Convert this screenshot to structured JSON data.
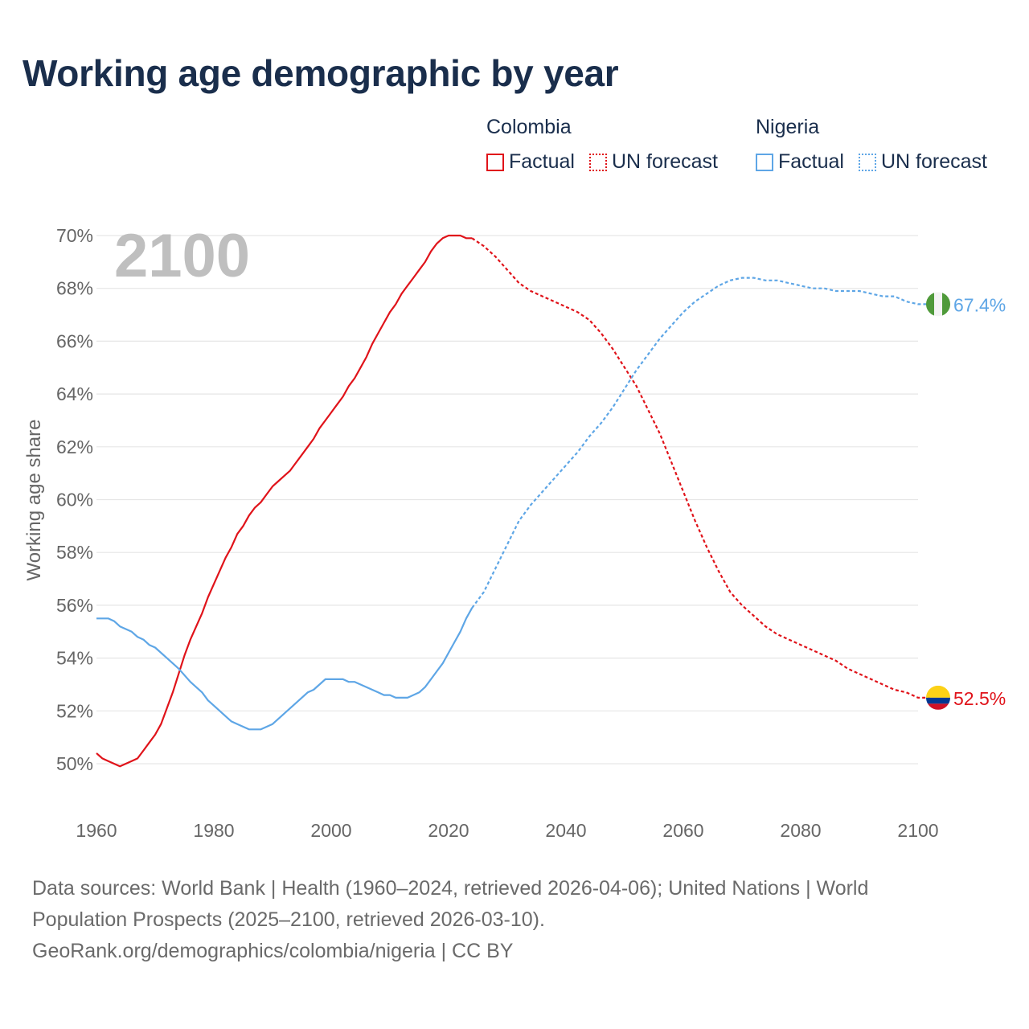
{
  "title": "Working age demographic by year",
  "legend": {
    "groups": [
      {
        "name": "Colombia",
        "factual": "Factual",
        "forecast": "UN forecast"
      },
      {
        "name": "Nigeria",
        "factual": "Factual",
        "forecast": "UN forecast"
      }
    ]
  },
  "sources": {
    "line1": "Data sources: World Bank | Health (1960–2024, retrieved 2026-04-06); United Nations | World",
    "line2": "Population Prospects (2025–2100, retrieved 2026-03-10).",
    "line3": "GeoRank.org/demographics/colombia/nigeria | CC BY"
  },
  "colors": {
    "colombia": "#e0131a",
    "nigeria": "#5ea6e6",
    "grid": "#e6e6e6",
    "tick": "#666666",
    "year_watermark": "#bfbfbf"
  },
  "chart_data": {
    "type": "line",
    "title": "Working age demographic by year",
    "year_watermark": "2100",
    "xlabel": "",
    "ylabel": "Working age share",
    "xlim": [
      1960,
      2100
    ],
    "ylim": [
      49,
      71
    ],
    "x_ticks": [
      "1960",
      "1980",
      "2000",
      "2020",
      "2040",
      "2060",
      "2080",
      "2100"
    ],
    "x_tick_values": [
      1960,
      1980,
      2000,
      2020,
      2040,
      2060,
      2080,
      2100
    ],
    "y_ticks": [
      "50%",
      "52%",
      "54%",
      "56%",
      "58%",
      "60%",
      "62%",
      "64%",
      "66%",
      "68%",
      "70%"
    ],
    "y_tick_values": [
      50,
      52,
      54,
      56,
      58,
      60,
      62,
      64,
      66,
      68,
      70
    ],
    "factual_end_year": 2024,
    "series": [
      {
        "name": "Colombia",
        "color": "#e0131a",
        "end_label": "52.5%",
        "flag": "colombia",
        "points": [
          [
            1960,
            50.4
          ],
          [
            1961,
            50.2
          ],
          [
            1962,
            50.1
          ],
          [
            1963,
            50.0
          ],
          [
            1964,
            49.9
          ],
          [
            1965,
            50.0
          ],
          [
            1966,
            50.1
          ],
          [
            1967,
            50.2
          ],
          [
            1968,
            50.5
          ],
          [
            1969,
            50.8
          ],
          [
            1970,
            51.1
          ],
          [
            1971,
            51.5
          ],
          [
            1972,
            52.1
          ],
          [
            1973,
            52.7
          ],
          [
            1974,
            53.4
          ],
          [
            1975,
            54.1
          ],
          [
            1976,
            54.7
          ],
          [
            1977,
            55.2
          ],
          [
            1978,
            55.7
          ],
          [
            1979,
            56.3
          ],
          [
            1980,
            56.8
          ],
          [
            1981,
            57.3
          ],
          [
            1982,
            57.8
          ],
          [
            1983,
            58.2
          ],
          [
            1984,
            58.7
          ],
          [
            1985,
            59.0
          ],
          [
            1986,
            59.4
          ],
          [
            1987,
            59.7
          ],
          [
            1988,
            59.9
          ],
          [
            1989,
            60.2
          ],
          [
            1990,
            60.5
          ],
          [
            1991,
            60.7
          ],
          [
            1992,
            60.9
          ],
          [
            1993,
            61.1
          ],
          [
            1994,
            61.4
          ],
          [
            1995,
            61.7
          ],
          [
            1996,
            62.0
          ],
          [
            1997,
            62.3
          ],
          [
            1998,
            62.7
          ],
          [
            1999,
            63.0
          ],
          [
            2000,
            63.3
          ],
          [
            2001,
            63.6
          ],
          [
            2002,
            63.9
          ],
          [
            2003,
            64.3
          ],
          [
            2004,
            64.6
          ],
          [
            2005,
            65.0
          ],
          [
            2006,
            65.4
          ],
          [
            2007,
            65.9
          ],
          [
            2008,
            66.3
          ],
          [
            2009,
            66.7
          ],
          [
            2010,
            67.1
          ],
          [
            2011,
            67.4
          ],
          [
            2012,
            67.8
          ],
          [
            2013,
            68.1
          ],
          [
            2014,
            68.4
          ],
          [
            2015,
            68.7
          ],
          [
            2016,
            69.0
          ],
          [
            2017,
            69.4
          ],
          [
            2018,
            69.7
          ],
          [
            2019,
            69.9
          ],
          [
            2020,
            70.0
          ],
          [
            2021,
            70.0
          ],
          [
            2022,
            70.0
          ],
          [
            2023,
            69.9
          ],
          [
            2024,
            69.9
          ],
          [
            2026,
            69.6
          ],
          [
            2028,
            69.2
          ],
          [
            2030,
            68.7
          ],
          [
            2032,
            68.2
          ],
          [
            2034,
            67.9
          ],
          [
            2036,
            67.7
          ],
          [
            2038,
            67.5
          ],
          [
            2040,
            67.3
          ],
          [
            2042,
            67.1
          ],
          [
            2044,
            66.8
          ],
          [
            2046,
            66.3
          ],
          [
            2048,
            65.7
          ],
          [
            2050,
            65.0
          ],
          [
            2052,
            64.3
          ],
          [
            2054,
            63.4
          ],
          [
            2056,
            62.5
          ],
          [
            2058,
            61.4
          ],
          [
            2060,
            60.3
          ],
          [
            2062,
            59.2
          ],
          [
            2064,
            58.2
          ],
          [
            2066,
            57.3
          ],
          [
            2068,
            56.5
          ],
          [
            2070,
            56.0
          ],
          [
            2072,
            55.6
          ],
          [
            2074,
            55.2
          ],
          [
            2076,
            54.9
          ],
          [
            2078,
            54.7
          ],
          [
            2080,
            54.5
          ],
          [
            2082,
            54.3
          ],
          [
            2084,
            54.1
          ],
          [
            2086,
            53.9
          ],
          [
            2088,
            53.6
          ],
          [
            2090,
            53.4
          ],
          [
            2092,
            53.2
          ],
          [
            2094,
            53.0
          ],
          [
            2096,
            52.8
          ],
          [
            2098,
            52.7
          ],
          [
            2100,
            52.5
          ],
          [
            2102,
            52.5
          ]
        ]
      },
      {
        "name": "Nigeria",
        "color": "#5ea6e6",
        "end_label": "67.4%",
        "flag": "nigeria",
        "points": [
          [
            1960,
            55.5
          ],
          [
            1962,
            55.5
          ],
          [
            1963,
            55.4
          ],
          [
            1964,
            55.2
          ],
          [
            1966,
            55.0
          ],
          [
            1967,
            54.8
          ],
          [
            1968,
            54.7
          ],
          [
            1969,
            54.5
          ],
          [
            1970,
            54.4
          ],
          [
            1972,
            54.0
          ],
          [
            1974,
            53.6
          ],
          [
            1976,
            53.1
          ],
          [
            1978,
            52.7
          ],
          [
            1979,
            52.4
          ],
          [
            1980,
            52.2
          ],
          [
            1982,
            51.8
          ],
          [
            1983,
            51.6
          ],
          [
            1984,
            51.5
          ],
          [
            1986,
            51.3
          ],
          [
            1988,
            51.3
          ],
          [
            1990,
            51.5
          ],
          [
            1992,
            51.9
          ],
          [
            1994,
            52.3
          ],
          [
            1996,
            52.7
          ],
          [
            1997,
            52.8
          ],
          [
            1998,
            53.0
          ],
          [
            1999,
            53.2
          ],
          [
            2000,
            53.2
          ],
          [
            2002,
            53.2
          ],
          [
            2003,
            53.1
          ],
          [
            2004,
            53.1
          ],
          [
            2006,
            52.9
          ],
          [
            2008,
            52.7
          ],
          [
            2009,
            52.6
          ],
          [
            2010,
            52.6
          ],
          [
            2011,
            52.5
          ],
          [
            2012,
            52.5
          ],
          [
            2013,
            52.5
          ],
          [
            2015,
            52.7
          ],
          [
            2016,
            52.9
          ],
          [
            2017,
            53.2
          ],
          [
            2018,
            53.5
          ],
          [
            2019,
            53.8
          ],
          [
            2020,
            54.2
          ],
          [
            2021,
            54.6
          ],
          [
            2022,
            55.0
          ],
          [
            2023,
            55.5
          ],
          [
            2024,
            55.9
          ],
          [
            2026,
            56.5
          ],
          [
            2028,
            57.4
          ],
          [
            2030,
            58.3
          ],
          [
            2032,
            59.2
          ],
          [
            2034,
            59.8
          ],
          [
            2036,
            60.3
          ],
          [
            2038,
            60.8
          ],
          [
            2040,
            61.3
          ],
          [
            2042,
            61.8
          ],
          [
            2044,
            62.4
          ],
          [
            2046,
            62.9
          ],
          [
            2048,
            63.5
          ],
          [
            2050,
            64.2
          ],
          [
            2052,
            64.9
          ],
          [
            2054,
            65.5
          ],
          [
            2056,
            66.1
          ],
          [
            2058,
            66.6
          ],
          [
            2060,
            67.1
          ],
          [
            2062,
            67.5
          ],
          [
            2064,
            67.8
          ],
          [
            2066,
            68.1
          ],
          [
            2068,
            68.3
          ],
          [
            2070,
            68.4
          ],
          [
            2072,
            68.4
          ],
          [
            2074,
            68.3
          ],
          [
            2076,
            68.3
          ],
          [
            2078,
            68.2
          ],
          [
            2080,
            68.1
          ],
          [
            2082,
            68.0
          ],
          [
            2084,
            68.0
          ],
          [
            2086,
            67.9
          ],
          [
            2088,
            67.9
          ],
          [
            2090,
            67.9
          ],
          [
            2092,
            67.8
          ],
          [
            2094,
            67.7
          ],
          [
            2096,
            67.7
          ],
          [
            2098,
            67.5
          ],
          [
            2100,
            67.4
          ],
          [
            2102,
            67.4
          ]
        ]
      }
    ]
  }
}
